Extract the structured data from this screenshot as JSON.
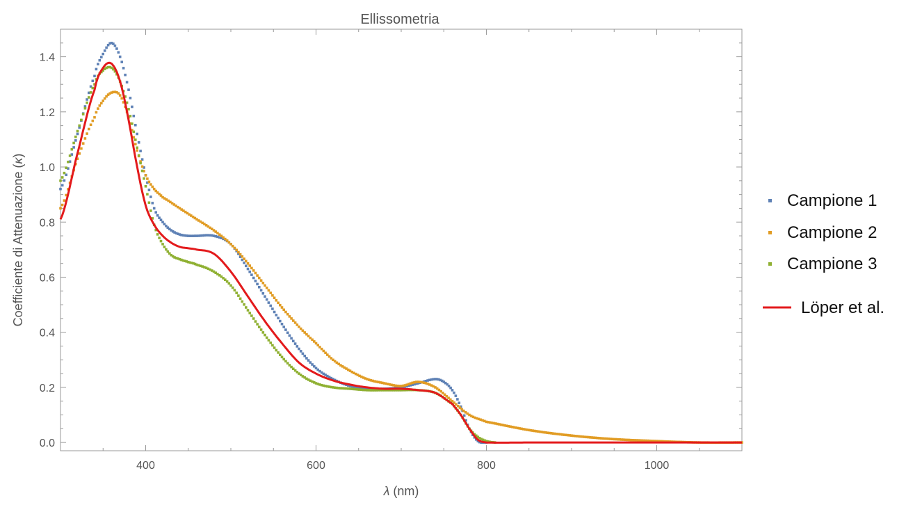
{
  "chart_data": {
    "type": "scatter",
    "title": "Ellissometria",
    "xlabel_symbol": "λ",
    "xlabel_unit": " (nm)",
    "ylabel_prefix": "Coefficiente di Attenuazione (",
    "ylabel_symbol": "κ",
    "ylabel_suffix": ")",
    "xlim": [
      300,
      1100
    ],
    "ylim": [
      -0.03,
      1.5
    ],
    "x_ticks": [
      400,
      600,
      800,
      1000
    ],
    "x_tick_labels": [
      "400",
      "600",
      "800",
      "1000"
    ],
    "y_ticks": [
      0.0,
      0.2,
      0.4,
      0.6,
      0.8,
      1.0,
      1.2,
      1.4
    ],
    "y_tick_labels": [
      "0.0",
      "0.2",
      "0.4",
      "0.6",
      "0.8",
      "1.0",
      "1.2",
      "1.4"
    ],
    "grid": false,
    "legend_position": "right",
    "series": [
      {
        "name": "Campione 1",
        "style": "points",
        "color": "#5e81b5",
        "x": [
          300,
          320,
          340,
          350,
          360,
          370,
          380,
          390,
          400,
          410,
          420,
          430,
          440,
          450,
          460,
          480,
          500,
          520,
          540,
          560,
          580,
          600,
          620,
          640,
          660,
          680,
          700,
          720,
          740,
          750,
          760,
          770,
          780,
          790,
          800
        ],
        "y": [
          0.92,
          1.12,
          1.33,
          1.41,
          1.45,
          1.4,
          1.28,
          1.12,
          0.97,
          0.85,
          0.8,
          0.77,
          0.755,
          0.75,
          0.75,
          0.75,
          0.72,
          0.63,
          0.53,
          0.43,
          0.34,
          0.27,
          0.23,
          0.205,
          0.195,
          0.195,
          0.2,
          0.215,
          0.23,
          0.22,
          0.19,
          0.13,
          0.05,
          0.005,
          0.0
        ]
      },
      {
        "name": "Campione 2",
        "style": "points",
        "color": "#e19c24",
        "x": [
          300,
          320,
          340,
          350,
          360,
          370,
          380,
          390,
          400,
          410,
          420,
          440,
          460,
          480,
          500,
          520,
          540,
          560,
          580,
          600,
          620,
          640,
          660,
          680,
          700,
          720,
          740,
          760,
          780,
          800,
          850,
          900,
          950,
          1000,
          1050,
          1100
        ],
        "y": [
          0.85,
          1.03,
          1.18,
          1.24,
          1.27,
          1.26,
          1.18,
          1.06,
          0.97,
          0.92,
          0.89,
          0.85,
          0.81,
          0.77,
          0.72,
          0.65,
          0.57,
          0.49,
          0.42,
          0.36,
          0.3,
          0.26,
          0.23,
          0.215,
          0.205,
          0.22,
          0.2,
          0.15,
          0.1,
          0.075,
          0.045,
          0.025,
          0.012,
          0.005,
          0.0,
          0.0
        ]
      },
      {
        "name": "Campione 3",
        "style": "points",
        "color": "#8fb032",
        "x": [
          300,
          320,
          340,
          350,
          360,
          370,
          380,
          390,
          400,
          410,
          420,
          430,
          440,
          450,
          460,
          480,
          500,
          520,
          540,
          560,
          580,
          600,
          620,
          640,
          660,
          680,
          700,
          720,
          740,
          760,
          770,
          780,
          790,
          800,
          810
        ],
        "y": [
          0.95,
          1.13,
          1.3,
          1.35,
          1.36,
          1.31,
          1.21,
          1.07,
          0.93,
          0.79,
          0.72,
          0.68,
          0.665,
          0.655,
          0.645,
          0.62,
          0.57,
          0.48,
          0.39,
          0.31,
          0.25,
          0.215,
          0.2,
          0.195,
          0.19,
          0.19,
          0.19,
          0.19,
          0.18,
          0.14,
          0.1,
          0.05,
          0.02,
          0.005,
          0.0
        ]
      },
      {
        "name": "Löper et al.",
        "style": "line",
        "color": "#e31a1c",
        "x": [
          300,
          320,
          340,
          350,
          360,
          370,
          380,
          390,
          400,
          410,
          420,
          430,
          440,
          450,
          460,
          480,
          500,
          520,
          540,
          560,
          580,
          600,
          620,
          640,
          660,
          680,
          700,
          720,
          740,
          760,
          770,
          780,
          790,
          800,
          850,
          900,
          1000,
          1100
        ],
        "y": [
          0.81,
          1.05,
          1.28,
          1.36,
          1.375,
          1.31,
          1.17,
          1.0,
          0.86,
          0.79,
          0.75,
          0.725,
          0.71,
          0.705,
          0.7,
          0.685,
          0.62,
          0.53,
          0.44,
          0.36,
          0.29,
          0.25,
          0.225,
          0.21,
          0.2,
          0.195,
          0.195,
          0.19,
          0.18,
          0.14,
          0.1,
          0.05,
          0.01,
          0.0,
          0.0,
          0.0,
          0.0,
          0.0
        ]
      }
    ]
  }
}
